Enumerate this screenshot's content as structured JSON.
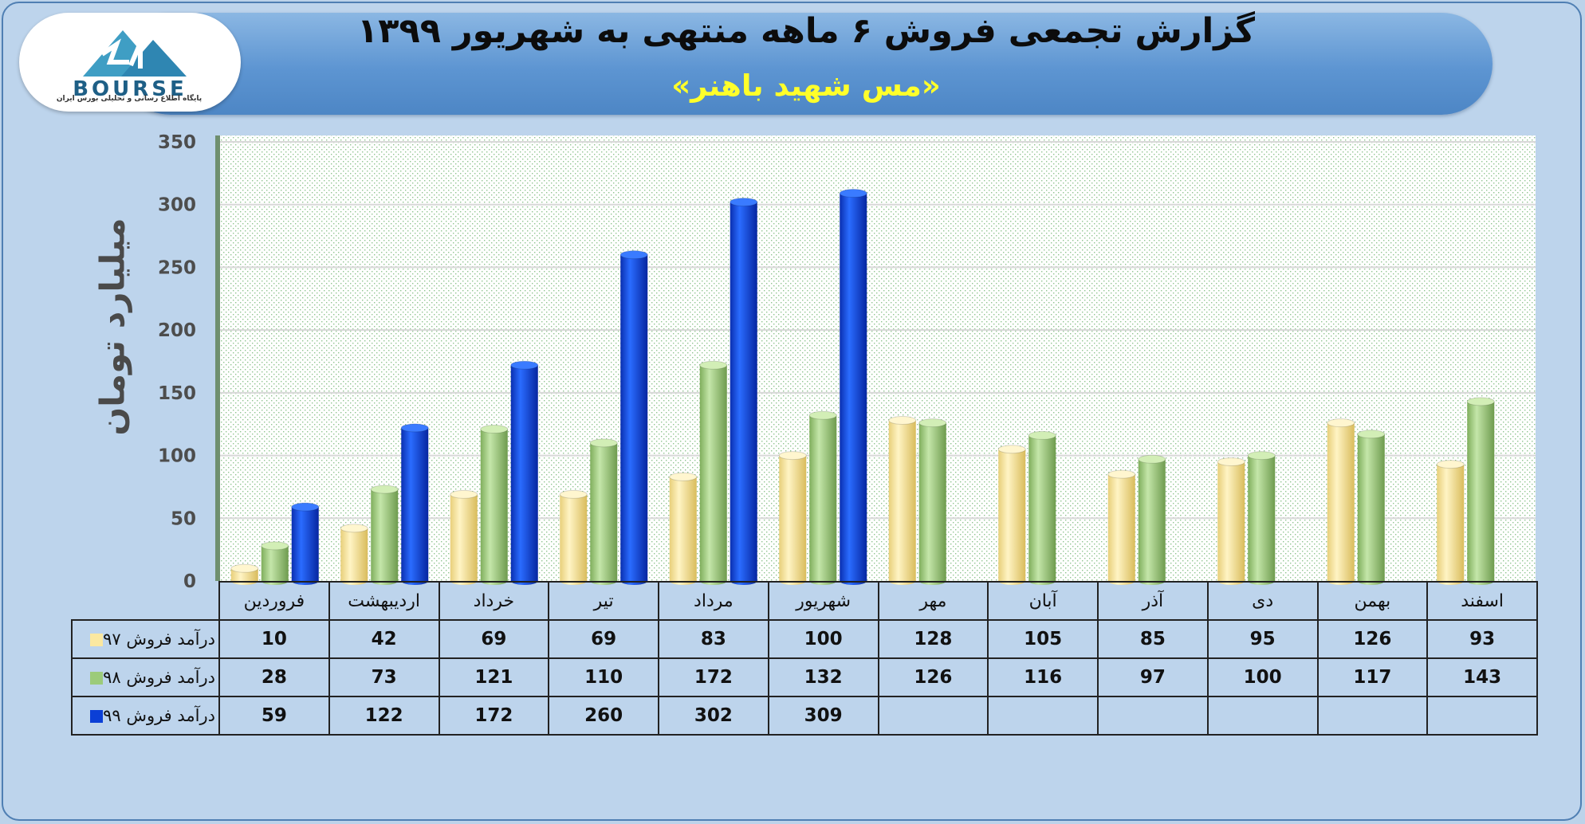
{
  "header": {
    "title": "گزارش تجمعی فروش ۶ ماهه منتهی به شهریور ۱۳۹۹",
    "subtitle": "«مس شهید باهنر»"
  },
  "logo": {
    "text": "BOURSE",
    "subtext": "پایگاه اطلاع رسانی و تحلیلی بورس ایران"
  },
  "chart_data": {
    "type": "bar",
    "title": "گزارش تجمعی فروش ۶ ماهه منتهی به شهریور ۱۳۹۹",
    "subtitle": "«مس شهید باهنر»",
    "ylabel": "میلیارد تومان",
    "ylim": [
      0,
      350
    ],
    "yticks": [
      0,
      50,
      100,
      150,
      200,
      250,
      300,
      350
    ],
    "grid": true,
    "categories": [
      "فروردین",
      "اردیبهشت",
      "خرداد",
      "تیر",
      "مرداد",
      "شهریور",
      "مهر",
      "آبان",
      "آذر",
      "دی",
      "بهمن",
      "اسفند"
    ],
    "series": [
      {
        "name": "درآمد فروش ۹۷",
        "color": "#fbe8a0",
        "values": [
          10,
          42,
          69,
          69,
          83,
          100,
          128,
          105,
          85,
          95,
          126,
          93
        ]
      },
      {
        "name": "درآمد فروش ۹۸",
        "color": "#9ccb7a",
        "values": [
          28,
          73,
          121,
          110,
          172,
          132,
          126,
          116,
          97,
          100,
          117,
          143
        ]
      },
      {
        "name": "درآمد فروش ۹۹",
        "color": "#0b3fd6",
        "values": [
          59,
          122,
          172,
          260,
          302,
          309,
          null,
          null,
          null,
          null,
          null,
          null
        ]
      }
    ]
  }
}
